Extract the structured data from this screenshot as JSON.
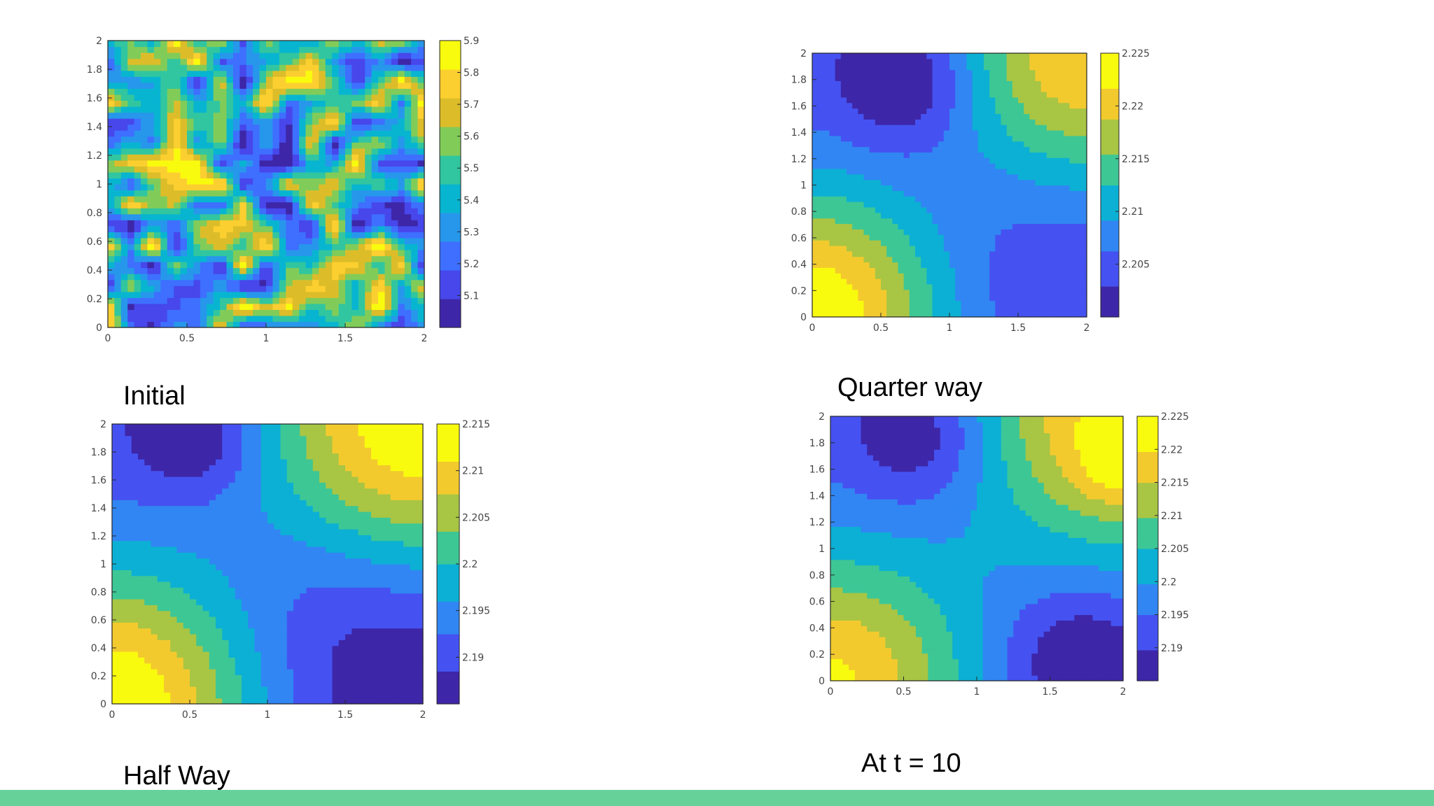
{
  "page": {
    "accent_bar_color": "#67d19a"
  },
  "chart_data": [
    {
      "type": "heatmap",
      "subtype": "filled-contour",
      "caption": "Initial",
      "title": "",
      "xlabel": "",
      "ylabel": "",
      "xlim": [
        0,
        2
      ],
      "ylim": [
        0,
        2
      ],
      "x_ticks": [
        "0",
        "0.5",
        "1",
        "1.5",
        "2"
      ],
      "y_ticks": [
        "0",
        "0.2",
        "0.4",
        "0.6",
        "0.8",
        "1",
        "1.2",
        "1.4",
        "1.6",
        "1.8",
        "2"
      ],
      "colorbar": {
        "min": 5.0,
        "max": 5.9,
        "ticks": [
          "5.1",
          "5.2",
          "5.3",
          "5.4",
          "5.5",
          "5.6",
          "5.7",
          "5.8",
          "5.9"
        ]
      },
      "colormap": "parula",
      "field": "random"
    },
    {
      "type": "heatmap",
      "subtype": "filled-contour",
      "caption": "Quarter way",
      "title": "",
      "xlabel": "",
      "ylabel": "",
      "xlim": [
        0,
        2
      ],
      "ylim": [
        0,
        2
      ],
      "x_ticks": [
        "0",
        "0.5",
        "1",
        "1.5",
        "2"
      ],
      "y_ticks": [
        "0",
        "0.2",
        "0.4",
        "0.6",
        "0.8",
        "1",
        "1.2",
        "1.4",
        "1.6",
        "1.8",
        "2"
      ],
      "colorbar": {
        "min": 2.2,
        "max": 2.225,
        "ticks": [
          "2.205",
          "2.21",
          "2.215",
          "2.22",
          "2.225"
        ]
      },
      "colormap": "parula",
      "field": "smooth-quarter"
    },
    {
      "type": "heatmap",
      "subtype": "filled-contour",
      "caption": "Half Way",
      "title": "",
      "xlabel": "",
      "ylabel": "",
      "xlim": [
        0,
        2
      ],
      "ylim": [
        0,
        2
      ],
      "x_ticks": [
        "0",
        "0.5",
        "1",
        "1.5",
        "2"
      ],
      "y_ticks": [
        "0",
        "0.2",
        "0.4",
        "0.6",
        "0.8",
        "1",
        "1.2",
        "1.4",
        "1.6",
        "1.8",
        "2"
      ],
      "colorbar": {
        "min": 2.185,
        "max": 2.215,
        "ticks": [
          "2.19",
          "2.195",
          "2.2",
          "2.205",
          "2.21",
          "2.215"
        ]
      },
      "colormap": "parula",
      "field": "smooth-half"
    },
    {
      "type": "heatmap",
      "subtype": "filled-contour",
      "caption": "At t = 10",
      "title": "",
      "xlabel": "",
      "ylabel": "",
      "xlim": [
        0,
        2
      ],
      "ylim": [
        0,
        2
      ],
      "x_ticks": [
        "0",
        "0.5",
        "1",
        "1.5",
        "2"
      ],
      "y_ticks": [
        "0",
        "0.2",
        "0.4",
        "0.6",
        "0.8",
        "1",
        "1.2",
        "1.4",
        "1.6",
        "1.8",
        "2"
      ],
      "colorbar": {
        "min": 2.185,
        "max": 2.225,
        "ticks": [
          "2.19",
          "2.195",
          "2.2",
          "2.205",
          "2.21",
          "2.215",
          "2.22",
          "2.225"
        ]
      },
      "colormap": "parula",
      "field": "smooth-final"
    }
  ]
}
